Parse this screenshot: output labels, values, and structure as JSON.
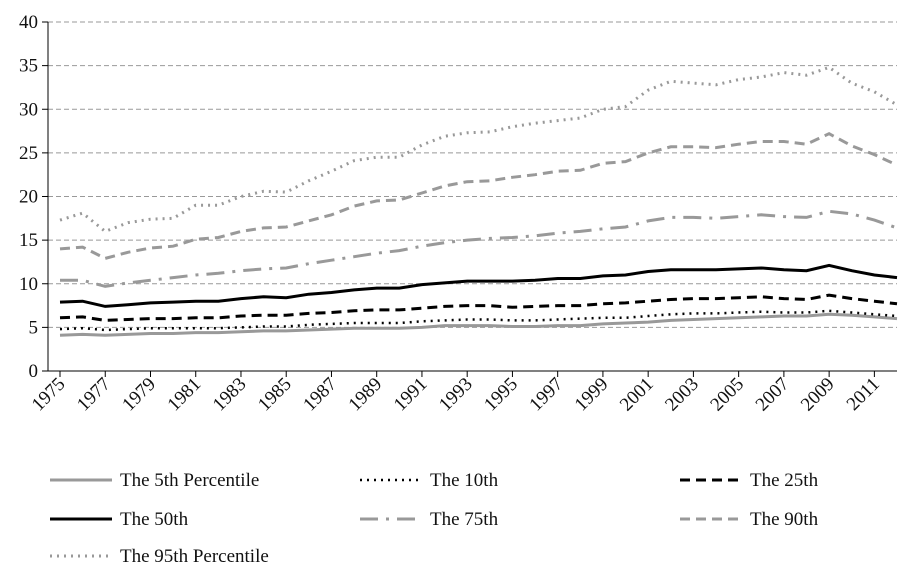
{
  "chart_data": {
    "type": "line",
    "x": [
      1975,
      1976,
      1977,
      1978,
      1979,
      1980,
      1981,
      1982,
      1983,
      1984,
      1985,
      1986,
      1987,
      1988,
      1989,
      1990,
      1991,
      1992,
      1993,
      1994,
      1995,
      1996,
      1997,
      1998,
      1999,
      2000,
      2001,
      2002,
      2003,
      2004,
      2005,
      2006,
      2007,
      2008,
      2009,
      2010,
      2011,
      2012
    ],
    "xlim": [
      1975,
      2012
    ],
    "xticks": [
      1975,
      1977,
      1979,
      1981,
      1983,
      1985,
      1987,
      1989,
      1991,
      1993,
      1995,
      1997,
      1999,
      2001,
      2003,
      2005,
      2007,
      2009,
      2011
    ],
    "ylim": [
      0,
      40
    ],
    "yticks": [
      0,
      5,
      10,
      15,
      20,
      25,
      30,
      35,
      40
    ],
    "grid": true,
    "series": [
      {
        "name": "The 5th Percentile",
        "color": "#999999",
        "dash": "solid",
        "width": 3,
        "values": [
          4.1,
          4.2,
          4.1,
          4.2,
          4.3,
          4.3,
          4.4,
          4.4,
          4.5,
          4.6,
          4.6,
          4.7,
          4.8,
          4.9,
          4.9,
          4.9,
          5.0,
          5.2,
          5.2,
          5.2,
          5.1,
          5.1,
          5.2,
          5.2,
          5.4,
          5.5,
          5.6,
          5.8,
          5.9,
          6.0,
          6.1,
          6.2,
          6.3,
          6.3,
          6.5,
          6.4,
          6.2,
          6.0
        ]
      },
      {
        "name": "The 10th",
        "color": "#000000",
        "dash": "dot",
        "width": 2.5,
        "values": [
          4.8,
          4.9,
          4.7,
          4.8,
          4.9,
          4.9,
          4.9,
          4.9,
          5.0,
          5.1,
          5.1,
          5.3,
          5.4,
          5.5,
          5.5,
          5.5,
          5.7,
          5.8,
          5.9,
          5.9,
          5.8,
          5.8,
          5.9,
          6.0,
          6.1,
          6.1,
          6.3,
          6.5,
          6.6,
          6.6,
          6.7,
          6.8,
          6.7,
          6.7,
          6.9,
          6.7,
          6.5,
          6.3
        ]
      },
      {
        "name": "The 25th",
        "color": "#000000",
        "dash": "dash",
        "width": 3,
        "values": [
          6.1,
          6.2,
          5.8,
          5.9,
          6.0,
          6.0,
          6.1,
          6.1,
          6.3,
          6.4,
          6.4,
          6.6,
          6.7,
          6.9,
          7.0,
          7.0,
          7.2,
          7.4,
          7.5,
          7.5,
          7.3,
          7.4,
          7.5,
          7.5,
          7.7,
          7.8,
          8.0,
          8.2,
          8.3,
          8.3,
          8.4,
          8.5,
          8.3,
          8.2,
          8.7,
          8.3,
          8.0,
          7.7
        ]
      },
      {
        "name": "The 50th",
        "color": "#000000",
        "dash": "solid",
        "width": 3,
        "values": [
          7.9,
          8.0,
          7.4,
          7.6,
          7.8,
          7.9,
          8.0,
          8.0,
          8.3,
          8.5,
          8.4,
          8.8,
          9.0,
          9.3,
          9.5,
          9.5,
          9.9,
          10.1,
          10.3,
          10.3,
          10.3,
          10.4,
          10.6,
          10.6,
          10.9,
          11.0,
          11.4,
          11.6,
          11.6,
          11.6,
          11.7,
          11.8,
          11.6,
          11.5,
          12.1,
          11.5,
          11.0,
          10.7
        ]
      },
      {
        "name": "The 75th",
        "color": "#999999",
        "dash": "dashdot",
        "width": 3,
        "values": [
          10.4,
          10.4,
          9.7,
          10.1,
          10.4,
          10.7,
          11.0,
          11.2,
          11.5,
          11.7,
          11.8,
          12.3,
          12.7,
          13.1,
          13.5,
          13.8,
          14.3,
          14.7,
          15.0,
          15.2,
          15.3,
          15.5,
          15.8,
          16.0,
          16.3,
          16.5,
          17.2,
          17.6,
          17.6,
          17.5,
          17.7,
          17.9,
          17.7,
          17.6,
          18.3,
          18.0,
          17.3,
          16.4
        ]
      },
      {
        "name": "The 90th",
        "color": "#999999",
        "dash": "dash",
        "width": 3,
        "values": [
          14.0,
          14.2,
          12.9,
          13.6,
          14.1,
          14.3,
          15.1,
          15.3,
          16.0,
          16.4,
          16.5,
          17.2,
          17.9,
          18.9,
          19.5,
          19.6,
          20.4,
          21.2,
          21.7,
          21.8,
          22.2,
          22.5,
          22.9,
          23.0,
          23.8,
          24.0,
          25.0,
          25.7,
          25.7,
          25.6,
          26.0,
          26.3,
          26.3,
          26.0,
          27.2,
          25.8,
          24.8,
          23.6
        ]
      },
      {
        "name": "The 95th Percentile",
        "color": "#999999",
        "dash": "dot",
        "width": 3,
        "values": [
          17.3,
          18.1,
          16.0,
          17.0,
          17.4,
          17.5,
          19.0,
          19.0,
          20.0,
          20.6,
          20.5,
          21.8,
          22.9,
          24.1,
          24.5,
          24.5,
          25.9,
          26.9,
          27.3,
          27.4,
          28.0,
          28.4,
          28.7,
          29.0,
          30.0,
          30.3,
          32.2,
          33.2,
          33.0,
          32.8,
          33.4,
          33.7,
          34.2,
          33.9,
          34.8,
          33.0,
          32.0,
          30.5
        ]
      }
    ]
  }
}
